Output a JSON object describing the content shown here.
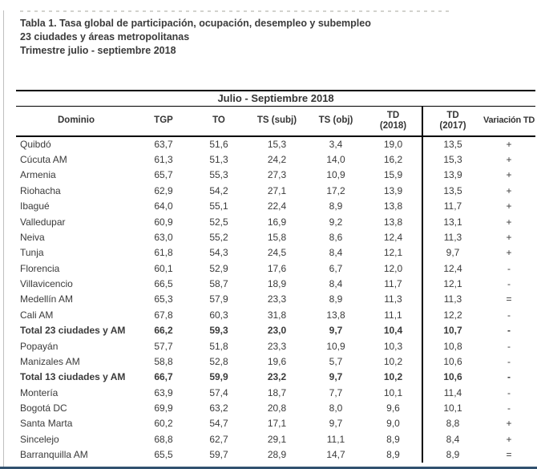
{
  "title": {
    "line1": "Tabla 1. Tasa global de participación, ocupación, desempleo y subempleo",
    "line2": "23 ciudades y áreas metropolitanas",
    "line3": "Trimestre julio - septiembre 2018"
  },
  "table": {
    "period_header": "Julio - Septiembre 2018",
    "columns": [
      {
        "id": "dominio",
        "label": "Dominio",
        "sub": ""
      },
      {
        "id": "tgp",
        "label": "TGP",
        "sub": ""
      },
      {
        "id": "to",
        "label": "TO",
        "sub": ""
      },
      {
        "id": "ts-subj",
        "label": "TS (subj)",
        "sub": ""
      },
      {
        "id": "ts-obj",
        "label": "TS (obj)",
        "sub": ""
      },
      {
        "id": "td-2018",
        "label": "TD",
        "sub": "(2018)"
      },
      {
        "id": "td-2017",
        "label": "TD",
        "sub": "(2017)"
      },
      {
        "id": "variacion-td",
        "label": "Variación TD",
        "sub": ""
      }
    ],
    "rows": [
      {
        "dominio": "Quibdó",
        "values": [
          "63,7",
          "51,6",
          "15,3",
          "3,4",
          "19,0",
          "13,5",
          "+"
        ],
        "bold": false
      },
      {
        "dominio": "Cúcuta AM",
        "values": [
          "61,3",
          "51,3",
          "24,2",
          "14,0",
          "16,2",
          "15,3",
          "+"
        ],
        "bold": false
      },
      {
        "dominio": "Armenia",
        "values": [
          "65,7",
          "55,3",
          "27,3",
          "10,9",
          "15,9",
          "13,9",
          "+"
        ],
        "bold": false
      },
      {
        "dominio": "Riohacha",
        "values": [
          "62,9",
          "54,2",
          "27,1",
          "17,2",
          "13,9",
          "13,5",
          "+"
        ],
        "bold": false
      },
      {
        "dominio": "Ibagué",
        "values": [
          "64,0",
          "55,1",
          "22,4",
          "8,9",
          "13,8",
          "11,7",
          "+"
        ],
        "bold": false
      },
      {
        "dominio": "Valledupar",
        "values": [
          "60,9",
          "52,5",
          "16,9",
          "9,2",
          "13,8",
          "13,1",
          "+"
        ],
        "bold": false
      },
      {
        "dominio": "Neiva",
        "values": [
          "63,0",
          "55,2",
          "15,8",
          "8,6",
          "12,4",
          "11,3",
          "+"
        ],
        "bold": false
      },
      {
        "dominio": "Tunja",
        "values": [
          "61,8",
          "54,3",
          "24,5",
          "8,4",
          "12,1",
          "9,7",
          "+"
        ],
        "bold": false
      },
      {
        "dominio": "Florencia",
        "values": [
          "60,1",
          "52,9",
          "17,6",
          "6,7",
          "12,0",
          "12,4",
          "-"
        ],
        "bold": false
      },
      {
        "dominio": "Villavicencio",
        "values": [
          "66,5",
          "58,7",
          "18,9",
          "8,4",
          "11,7",
          "12,1",
          "-"
        ],
        "bold": false
      },
      {
        "dominio": "Medellín AM",
        "values": [
          "65,3",
          "57,9",
          "23,3",
          "8,9",
          "11,3",
          "11,3",
          "="
        ],
        "bold": false
      },
      {
        "dominio": "Cali AM",
        "values": [
          "67,8",
          "60,3",
          "31,8",
          "13,8",
          "11,1",
          "12,2",
          "-"
        ],
        "bold": false
      },
      {
        "dominio": "Total 23 ciudades y AM",
        "values": [
          "66,2",
          "59,3",
          "23,0",
          "9,7",
          "10,4",
          "10,7",
          "-"
        ],
        "bold": true
      },
      {
        "dominio": "Popayán",
        "values": [
          "57,7",
          "51,8",
          "23,3",
          "10,9",
          "10,3",
          "10,8",
          "-"
        ],
        "bold": false
      },
      {
        "dominio": "Manizales AM",
        "values": [
          "58,8",
          "52,8",
          "19,6",
          "5,7",
          "10,2",
          "10,6",
          "-"
        ],
        "bold": false
      },
      {
        "dominio": "Total 13 ciudades y AM",
        "values": [
          "66,7",
          "59,9",
          "23,2",
          "9,7",
          "10,2",
          "10,6",
          "-"
        ],
        "bold": true
      },
      {
        "dominio": "Montería",
        "values": [
          "63,9",
          "57,4",
          "18,7",
          "7,7",
          "10,1",
          "11,4",
          "-"
        ],
        "bold": false
      },
      {
        "dominio": "Bogotá DC",
        "values": [
          "69,9",
          "63,2",
          "20,8",
          "8,0",
          "9,6",
          "10,1",
          "-"
        ],
        "bold": false
      },
      {
        "dominio": "Santa Marta",
        "values": [
          "60,2",
          "54,7",
          "17,1",
          "9,7",
          "9,0",
          "8,8",
          "+"
        ],
        "bold": false
      },
      {
        "dominio": "Sincelejo",
        "values": [
          "68,8",
          "62,7",
          "29,1",
          "11,1",
          "8,9",
          "8,4",
          "+"
        ],
        "bold": false
      },
      {
        "dominio": "Barranquilla AM",
        "values": [
          "65,5",
          "59,7",
          "28,9",
          "14,7",
          "8,9",
          "8,9",
          "="
        ],
        "bold": false
      }
    ]
  },
  "colors": {
    "border": "#000000",
    "text": "#3a3a3a",
    "bottom_bar": "#31516f",
    "frame_line": "#bfbfbf"
  }
}
